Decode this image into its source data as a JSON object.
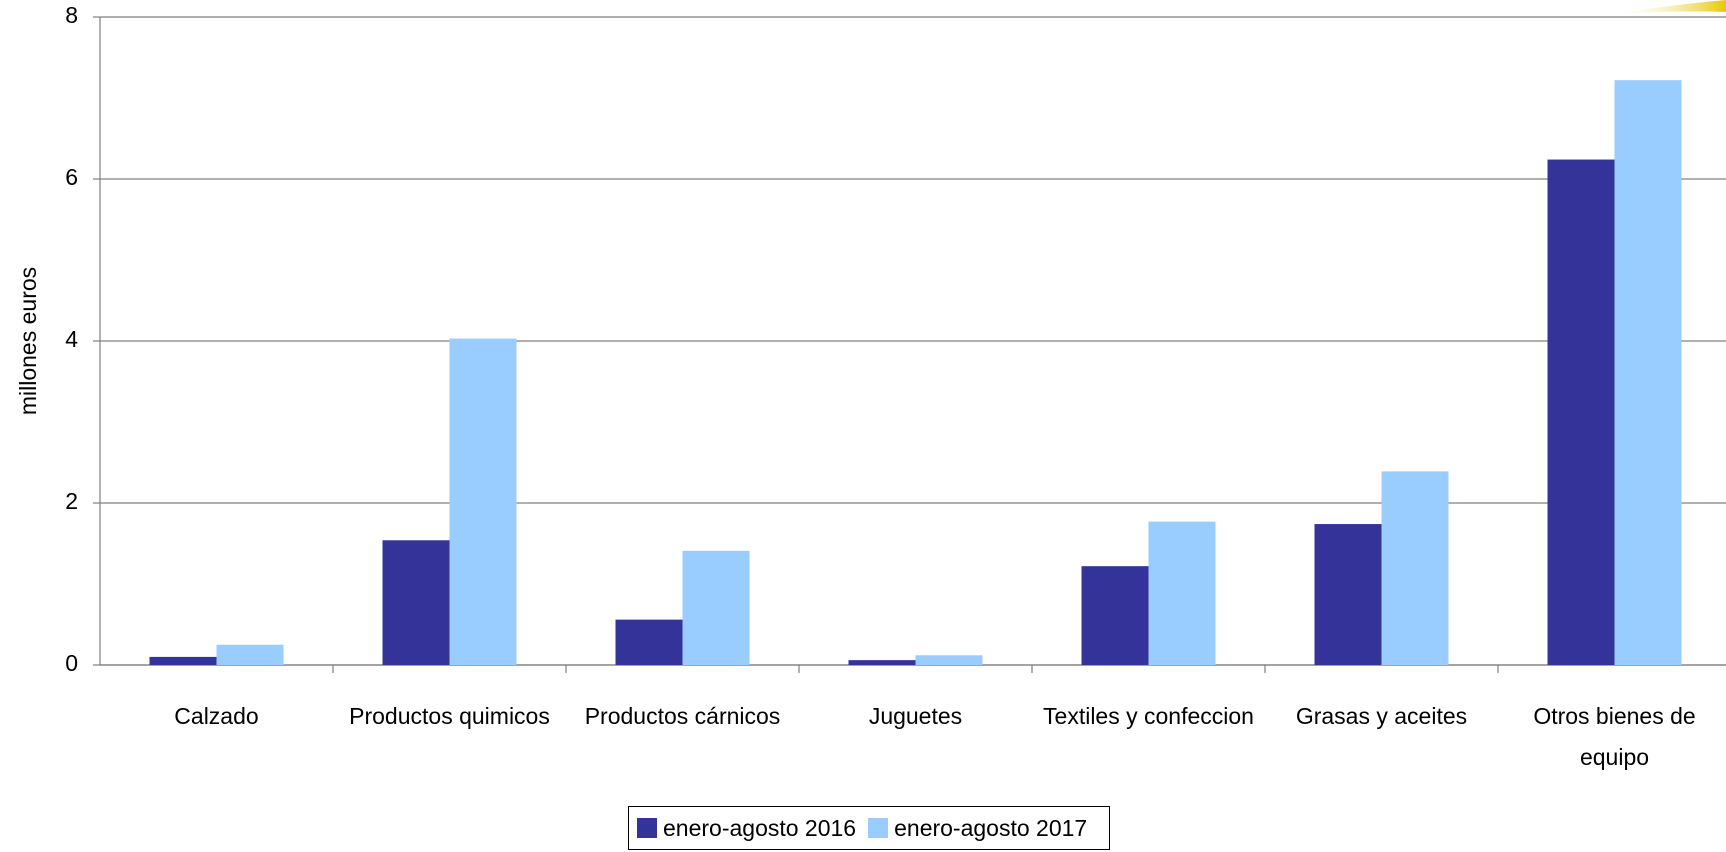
{
  "chart_data": {
    "type": "bar",
    "y_label": "millones euros",
    "categories": [
      "Calzado",
      "Productos quimicos",
      "Productos cárnicos",
      "Juguetes",
      "Textiles y confeccion",
      "Grasas y aceites",
      "Otros bienes de equipo"
    ],
    "series": [
      {
        "name": "enero-agosto 2016",
        "color": "#333399",
        "values": [
          0.1,
          1.54,
          0.56,
          0.06,
          1.22,
          1.74,
          6.24
        ]
      },
      {
        "name": "enero-agosto 2017",
        "color": "#99ccff",
        "values": [
          0.25,
          4.03,
          1.41,
          0.12,
          1.77,
          2.39,
          7.22
        ]
      }
    ],
    "ylim": [
      0,
      8
    ],
    "yticks": [
      0,
      2,
      4,
      6,
      8
    ],
    "grid": true
  }
}
